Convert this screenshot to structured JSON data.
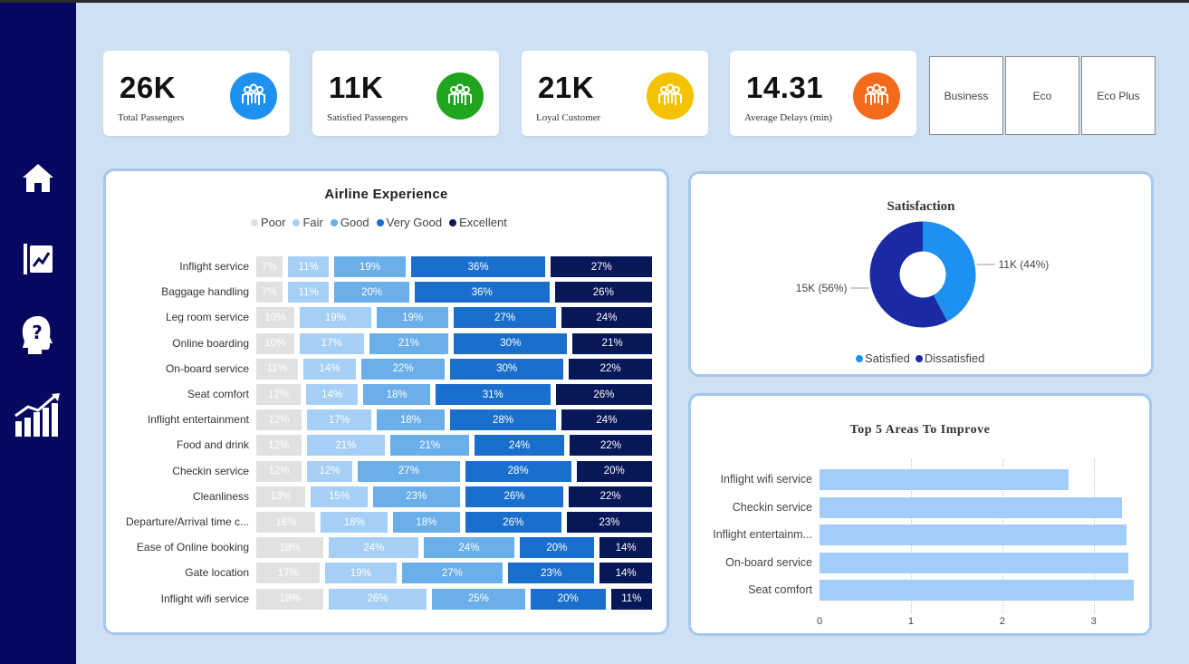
{
  "kpis": [
    {
      "value": "26K",
      "label": "Total Passengers",
      "color": "#1e90f0",
      "icon": "passengers-icon"
    },
    {
      "value": "11K",
      "label": "Satisfied Passengers",
      "color": "#1fa51f",
      "icon": "passengers-icon"
    },
    {
      "value": "21K",
      "label": "Loyal Customer",
      "color": "#f5c200",
      "icon": "passengers-icon"
    },
    {
      "value": "14.31",
      "label": "Average Delays (min)",
      "color": "#f26a1b",
      "icon": "passengers-icon"
    }
  ],
  "slicer": {
    "items": [
      "Business",
      "Eco",
      "Eco Plus"
    ]
  },
  "nav": {
    "icons": [
      "home-icon",
      "report-icon",
      "help-head-icon",
      "growth-chart-icon"
    ]
  },
  "experience": {
    "title": "Airline Experience",
    "legend": [
      "Poor",
      "Fair",
      "Good",
      "Very Good",
      "Excellent"
    ],
    "colors": [
      "#e1e1e1",
      "#a6cff5",
      "#6aaeea",
      "#1b6fcc",
      "#081758"
    ],
    "text_colors": [
      "#ffffff",
      "#ffffff",
      "#ffffff",
      "#ffffff",
      "#ffffff"
    ]
  },
  "chart_data": [
    {
      "type": "bar",
      "title": "Airline Experience",
      "stacked": "100%",
      "orientation": "horizontal",
      "categories": [
        "Inflight service",
        "Baggage handling",
        "Leg room service",
        "Online boarding",
        "On-board service",
        "Seat comfort",
        "Inflight entertainment",
        "Food and drink",
        "Checkin service",
        "Cleanliness",
        "Departure/Arrival time c...",
        "Ease of Online booking",
        "Gate location",
        "Inflight wifi service"
      ],
      "series": [
        {
          "name": "Poor",
          "values": [
            7,
            7,
            10,
            10,
            11,
            12,
            12,
            12,
            12,
            13,
            16,
            18,
            17,
            18
          ],
          "labels": [
            "7%",
            "7%",
            "10%",
            "10%",
            "11%",
            "12%",
            "12%",
            "12%",
            "12%",
            "13%",
            "16%",
            "18%",
            "17%",
            "18%"
          ]
        },
        {
          "name": "Fair",
          "values": [
            11,
            11,
            19,
            17,
            14,
            14,
            17,
            21,
            12,
            15,
            18,
            24,
            19,
            26
          ],
          "labels": [
            "11%",
            "11%",
            "19%",
            "17%",
            "14%",
            "14%",
            "17%",
            "21%",
            "12%",
            "15%",
            "18%",
            "24%",
            "19%",
            "26%"
          ]
        },
        {
          "name": "Good",
          "values": [
            19,
            20,
            19,
            21,
            22,
            18,
            18,
            21,
            27,
            23,
            18,
            24,
            27,
            25
          ],
          "labels": [
            "19%",
            "20%",
            "19%",
            "21%",
            "22%",
            "18%",
            "18%",
            "21%",
            "27%",
            "23%",
            "18%",
            "24%",
            "27%",
            "25%"
          ]
        },
        {
          "name": "Very Good",
          "values": [
            36,
            36,
            27,
            30,
            30,
            31,
            28,
            24,
            28,
            26,
            26,
            20,
            23,
            20
          ],
          "labels": [
            "36%",
            "36%",
            "27%",
            "30%",
            "30%",
            "31%",
            "28%",
            "24%",
            "28%",
            "26%",
            "26%",
            "20%",
            "23%",
            "20%"
          ]
        },
        {
          "name": "Excellent",
          "values": [
            27,
            26,
            24,
            21,
            22,
            26,
            24,
            22,
            20,
            22,
            23,
            14,
            14,
            11
          ],
          "labels": [
            "27%",
            "26%",
            "24%",
            "21%",
            "22%",
            "26%",
            "24%",
            "22%",
            "20%",
            "22%",
            "23%",
            "14%",
            "14%",
            "11%"
          ]
        }
      ],
      "legend": "top"
    },
    {
      "type": "pie",
      "variant": "donut",
      "title": "Satisfaction",
      "slices": [
        {
          "name": "Satisfied",
          "value": 11,
          "label": "11K (44%)",
          "color": "#1e90f0"
        },
        {
          "name": "Dissatisfied",
          "value": 15,
          "label": "15K (56%)",
          "color": "#1a2aa5"
        }
      ],
      "legend": "bottom"
    },
    {
      "type": "bar",
      "orientation": "horizontal",
      "title": "Top 5 Areas To Improve",
      "categories": [
        "Inflight wifi service",
        "Checkin service",
        "Inflight entertainm...",
        "On-board service",
        "Seat comfort"
      ],
      "values": [
        2.73,
        3.31,
        3.36,
        3.38,
        3.44
      ],
      "xlim": [
        0,
        3.45
      ],
      "xticks": [
        "0",
        "1",
        "2",
        "3"
      ],
      "color": "#a2cdf8",
      "grid": true
    }
  ]
}
